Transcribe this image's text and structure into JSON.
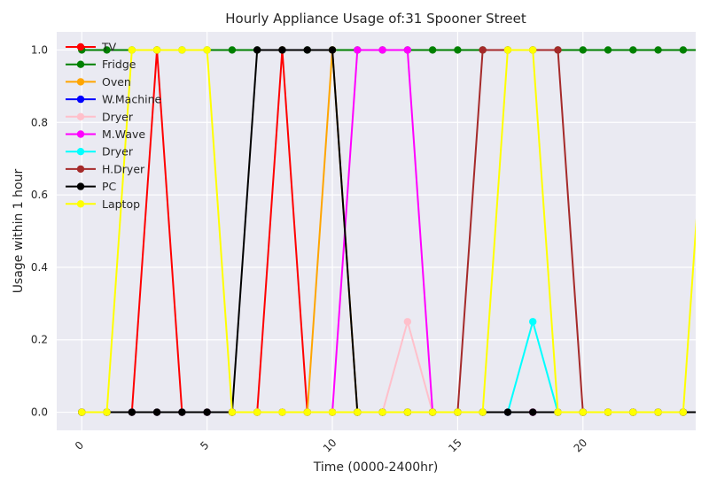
{
  "chart_data": {
    "type": "line",
    "title": "Hourly Appliance Usage of:31 Spooner Street",
    "xlabel": "Time (0000-2400hr)",
    "ylabel": "Usage within 1 hour",
    "xlim": [
      -1,
      24.5
    ],
    "ylim": [
      -0.05,
      1.05
    ],
    "xticks": [
      0,
      5,
      10,
      15,
      20
    ],
    "xtick_labels": [
      "0",
      "5",
      "10",
      "15",
      "20"
    ],
    "yticks": [
      0.0,
      0.2,
      0.4,
      0.6,
      0.8,
      1.0
    ],
    "ytick_labels": [
      "0.0",
      "0.2",
      "0.4",
      "0.6",
      "0.8",
      "1.0"
    ],
    "grid": true,
    "legend_position": "top-left",
    "x": [
      0,
      1,
      2,
      3,
      4,
      5,
      6,
      7,
      8,
      9,
      10,
      11,
      12,
      13,
      14,
      15,
      16,
      17,
      18,
      19,
      20,
      21,
      22,
      23,
      24,
      25
    ],
    "series": [
      {
        "name": "TV",
        "color": "#ff0000",
        "values": [
          0,
          0,
          0,
          1,
          0,
          0,
          0,
          0,
          1,
          0,
          0,
          0,
          0,
          0,
          0,
          0,
          0,
          0,
          0,
          0,
          0,
          0,
          0,
          0,
          0,
          0
        ]
      },
      {
        "name": "Fridge",
        "color": "#008000",
        "values": [
          1,
          1,
          1,
          1,
          1,
          1,
          1,
          1,
          1,
          1,
          1,
          1,
          1,
          1,
          1,
          1,
          1,
          1,
          1,
          1,
          1,
          1,
          1,
          1,
          1,
          1
        ]
      },
      {
        "name": "Oven",
        "color": "#ffa500",
        "values": [
          0,
          0,
          0,
          0,
          0,
          0,
          0,
          0,
          0,
          0,
          1,
          0,
          0,
          0,
          0,
          0,
          0,
          0,
          0,
          0,
          0,
          0,
          0,
          0,
          0,
          0
        ]
      },
      {
        "name": "W.Machine",
        "color": "#0000ff",
        "values": [
          0,
          0,
          0,
          0,
          0,
          0,
          0,
          0,
          0,
          0,
          0,
          0,
          0,
          0,
          0,
          0,
          0,
          0,
          0,
          0,
          0,
          0,
          0,
          0,
          0,
          0
        ]
      },
      {
        "name": "Dryer",
        "color": "#ffc0cb",
        "values": [
          0,
          0,
          0,
          0,
          0,
          0,
          0,
          0,
          0,
          0,
          0,
          0,
          0,
          0.25,
          0,
          0,
          0,
          0,
          0,
          0,
          0,
          0,
          0,
          0,
          0,
          0
        ]
      },
      {
        "name": "M.Wave",
        "color": "#ff00ff",
        "values": [
          0,
          0,
          0,
          0,
          0,
          0,
          0,
          0,
          0,
          0,
          0,
          1,
          1,
          1,
          0,
          0,
          0,
          0,
          0,
          0,
          0,
          0,
          0,
          0,
          0,
          0
        ]
      },
      {
        "name": "Dryer",
        "color": "#00ffff",
        "values": [
          0,
          0,
          0,
          0,
          0,
          0,
          0,
          0,
          0,
          0,
          0,
          0,
          0,
          0,
          0,
          0,
          0,
          0,
          0.25,
          0,
          0,
          0,
          0,
          0,
          0,
          0
        ]
      },
      {
        "name": "H.Dryer",
        "color": "#a52a2a",
        "values": [
          0,
          0,
          0,
          0,
          0,
          0,
          0,
          0,
          0,
          0,
          0,
          0,
          0,
          0,
          0,
          0,
          1,
          1,
          1,
          1,
          0,
          0,
          0,
          0,
          0,
          0
        ]
      },
      {
        "name": "PC",
        "color": "#000000",
        "values": [
          0,
          0,
          0,
          0,
          0,
          0,
          0,
          1,
          1,
          1,
          1,
          0,
          0,
          0,
          0,
          0,
          0,
          0,
          0,
          0,
          0,
          0,
          0,
          0,
          0,
          0
        ]
      },
      {
        "name": "Laptop",
        "color": "#ffff00",
        "values": [
          0,
          0,
          1,
          1,
          1,
          1,
          0,
          0,
          0,
          0,
          0,
          0,
          0,
          0,
          0,
          0,
          0,
          1,
          1,
          0,
          0,
          0,
          0,
          0,
          0,
          1
        ]
      }
    ]
  }
}
